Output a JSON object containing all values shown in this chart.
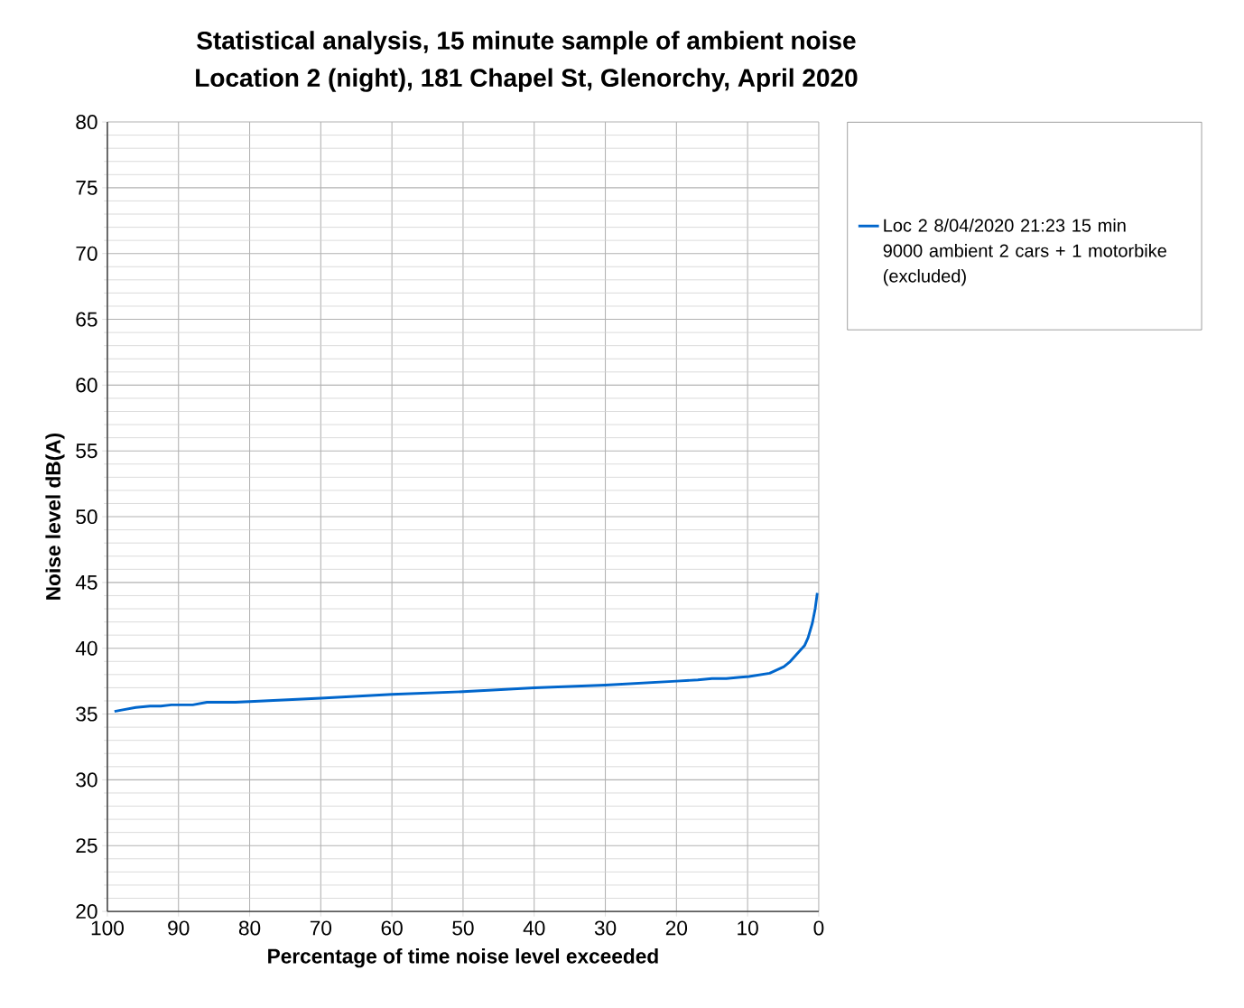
{
  "chart_data": {
    "type": "line",
    "title": "Statistical analysis, 15 minute sample of ambient noise\nLocation 2 (night), 181 Chapel St, Glenorchy, April 2020",
    "xlabel": "Percentage of time noise level exceeded",
    "ylabel": "Noise level dB(A)",
    "x": [
      99,
      98,
      96,
      94,
      92.5,
      91,
      88,
      86,
      82,
      70,
      60,
      50,
      40,
      30,
      20,
      17,
      15,
      13,
      11,
      9.8,
      6.9,
      4.9,
      4,
      3,
      2,
      1.5,
      0.9,
      0.5,
      0.2
    ],
    "series": [
      {
        "name": "Loc 2 8/04/2020 21:23 15 min 9000 ambient 2 cars + 1 motorbike (excluded)",
        "color": "#0066cc",
        "values": [
          35.2,
          35.3,
          35.5,
          35.6,
          35.6,
          35.7,
          35.7,
          35.9,
          35.9,
          36.2,
          36.5,
          36.7,
          37.0,
          37.2,
          37.5,
          37.6,
          37.7,
          37.7,
          37.8,
          37.85,
          38.1,
          38.6,
          39.0,
          39.6,
          40.2,
          40.8,
          41.9,
          43.0,
          44.2
        ]
      }
    ],
    "xlim": [
      100,
      0
    ],
    "ylim": [
      20,
      80
    ],
    "xticks": [
      100,
      90,
      80,
      70,
      60,
      50,
      40,
      30,
      20,
      10,
      0
    ],
    "yticks": [
      20,
      25,
      30,
      35,
      40,
      45,
      50,
      55,
      60,
      65,
      70,
      75,
      80
    ],
    "grid": true,
    "legend": "top right",
    "marker": "none",
    "line_style": "solid"
  }
}
